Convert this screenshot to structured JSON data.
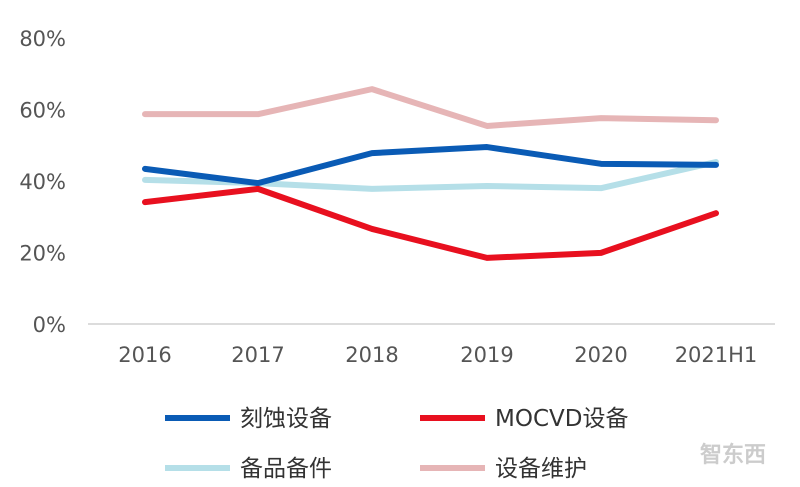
{
  "chart_data": {
    "type": "line",
    "title": "",
    "xlabel": "",
    "ylabel": "",
    "categories": [
      "2016",
      "2017",
      "2018",
      "2019",
      "2020",
      "2021H1"
    ],
    "ylim": [
      0,
      80
    ],
    "yticks": [
      "0%",
      "20%",
      "40%",
      "60%",
      "80%"
    ],
    "ytick_values": [
      0,
      20,
      40,
      60,
      80
    ],
    "grid": false,
    "legend_placement": "bottom",
    "series": [
      {
        "name": "刻蚀设备",
        "color": "#0a5bb5",
        "values": [
          43.4,
          39.4,
          47.8,
          49.5,
          44.8,
          44.5
        ]
      },
      {
        "name": "MOCVD设备",
        "color": "#e8101f",
        "values": [
          34.1,
          37.8,
          26.6,
          18.5,
          19.9,
          31.0
        ]
      },
      {
        "name": "备品备件",
        "color": "#b5dfe8",
        "values": [
          40.3,
          39.4,
          37.8,
          38.6,
          38.0,
          45.3
        ]
      },
      {
        "name": "设备维护",
        "color": "#e6b5b6",
        "values": [
          58.7,
          58.7,
          65.7,
          55.4,
          57.6,
          57.0
        ]
      }
    ]
  },
  "watermark": "智东西"
}
